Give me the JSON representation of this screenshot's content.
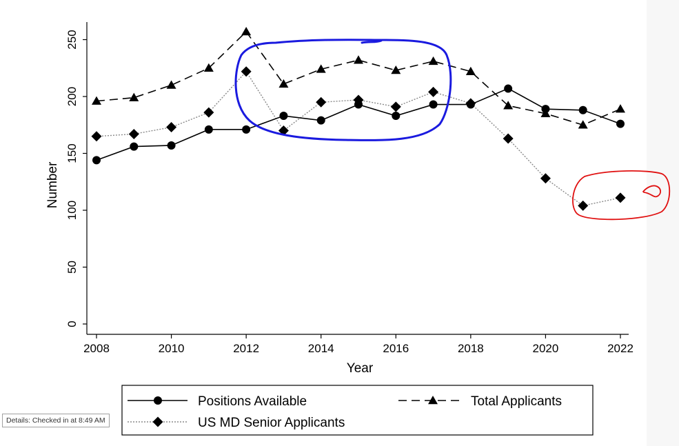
{
  "status": {
    "tooltip": "Details: Checked in at 8:49 AM"
  },
  "chart_data": {
    "type": "line",
    "title": "",
    "xlabel": "Year",
    "ylabel": "Number",
    "x": [
      2008,
      2009,
      2010,
      2011,
      2012,
      2013,
      2014,
      2015,
      2016,
      2017,
      2018,
      2019,
      2020,
      2021,
      2022
    ],
    "xticks": [
      2008,
      2010,
      2012,
      2014,
      2016,
      2018,
      2020,
      2022
    ],
    "xtick_labels": [
      "2008",
      "2010",
      "2012",
      "2014",
      "2016",
      "2018",
      "2020",
      "2022"
    ],
    "yticks": [
      0,
      50,
      100,
      150,
      200,
      250
    ],
    "ytick_labels": [
      "0",
      "50",
      "100",
      "150",
      "200",
      "250"
    ],
    "xlim": [
      2008,
      2022
    ],
    "ylim": [
      0,
      260
    ],
    "grid": false,
    "legend_position": "bottom",
    "series": [
      {
        "name": "Positions Available",
        "line_style": "solid",
        "marker": "circle",
        "color": "#000000",
        "values": [
          144,
          156,
          157,
          171,
          171,
          183,
          179,
          193,
          183,
          193,
          193,
          207,
          189,
          188,
          176
        ]
      },
      {
        "name": "Total Applicants",
        "line_style": "dashed",
        "marker": "triangle",
        "color": "#000000",
        "values": [
          196,
          199,
          210,
          225,
          257,
          211,
          224,
          232,
          223,
          231,
          222,
          192,
          185,
          175,
          189
        ]
      },
      {
        "name": "US MD Senior Applicants",
        "line_style": "dotted",
        "marker": "diamond",
        "color": "#888888",
        "values": [
          165,
          167,
          173,
          186,
          222,
          170,
          195,
          197,
          191,
          204,
          194,
          163,
          128,
          104,
          111
        ]
      }
    ],
    "annotations": [
      {
        "type": "hand-drawn-ellipse",
        "color": "#1a1adf"
      },
      {
        "type": "hand-drawn-ellipse",
        "color": "#e01010"
      }
    ]
  }
}
